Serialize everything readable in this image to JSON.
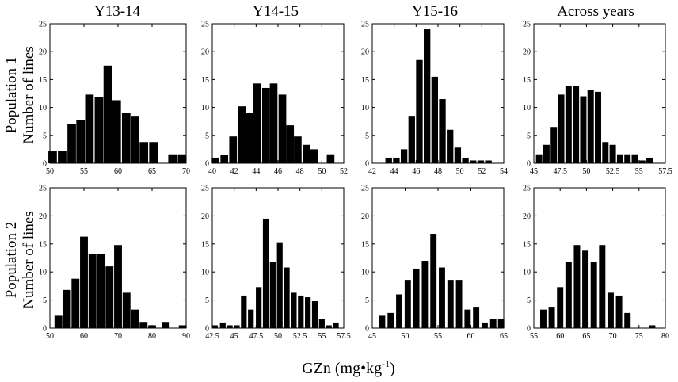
{
  "figure": {
    "x_axis_label": "GZn (mg•kg",
    "x_axis_label_sup": "-1",
    "x_axis_label_close": ")",
    "row_labels": [
      {
        "line1": "Population 1",
        "line2": "Number of lines"
      },
      {
        "line1": "Population 2",
        "line2": "Number of lines"
      }
    ],
    "column_titles": [
      "Y13-14",
      "Y14-15",
      "Y15-16",
      "Across years"
    ]
  },
  "chart_data": [
    {
      "type": "bar",
      "population": "Population 1",
      "title": "Y13-14",
      "xlabel": "GZn (mg•kg-1)",
      "ylabel": "Number of lines",
      "xlim": [
        50,
        70
      ],
      "ylim": [
        0,
        25
      ],
      "bar_width": 1.25,
      "xticks": [
        50,
        55,
        60,
        65,
        70
      ],
      "xtick_labels": [
        "50",
        "55",
        "60",
        "65",
        "70"
      ],
      "yticks": [
        0,
        5,
        10,
        15,
        20,
        25
      ],
      "ytick_labels": [
        "0",
        "5",
        "10",
        "15",
        "20",
        "25"
      ],
      "x": [
        50.4,
        51.8,
        53.2,
        54.5,
        55.8,
        57.2,
        58.5,
        59.8,
        61.2,
        62.5,
        63.8,
        65.2,
        68.0,
        69.4
      ],
      "values": [
        2.2,
        2.2,
        7.0,
        7.8,
        12.3,
        11.8,
        17.5,
        11.3,
        9.0,
        8.5,
        3.8,
        3.8,
        1.6,
        1.6
      ]
    },
    {
      "type": "bar",
      "population": "Population 1",
      "title": "Y14-15",
      "xlabel": "GZn (mg•kg-1)",
      "ylabel": "Number of lines",
      "xlim": [
        40,
        52
      ],
      "ylim": [
        0,
        25
      ],
      "bar_width": 0.7,
      "xticks": [
        40,
        42,
        44,
        46,
        48,
        50,
        52
      ],
      "xtick_labels": [
        "40",
        "42",
        "44",
        "46",
        "48",
        "50",
        "52"
      ],
      "yticks": [
        0,
        5,
        10,
        15,
        20,
        25
      ],
      "ytick_labels": [
        "0",
        "5",
        "10",
        "15",
        "20",
        "25"
      ],
      "x": [
        40.3,
        41.1,
        41.9,
        42.7,
        43.4,
        44.1,
        44.9,
        45.6,
        46.4,
        47.1,
        47.8,
        48.6,
        49.3,
        50.8
      ],
      "values": [
        1.0,
        1.5,
        4.8,
        10.2,
        9.0,
        14.3,
        13.5,
        14.3,
        12.3,
        6.8,
        4.8,
        3.3,
        2.5,
        1.6
      ]
    },
    {
      "type": "bar",
      "population": "Population 1",
      "title": "Y15-16",
      "xlabel": "GZn (mg•kg-1)",
      "ylabel": "Number of lines",
      "xlim": [
        42,
        54
      ],
      "ylim": [
        0,
        25
      ],
      "bar_width": 0.6,
      "xticks": [
        42,
        44,
        46,
        48,
        50,
        52,
        54
      ],
      "xtick_labels": [
        "42",
        "44",
        "46",
        "48",
        "50",
        "52",
        "54"
      ],
      "yticks": [
        0,
        5,
        10,
        15,
        20,
        25
      ],
      "ytick_labels": [
        "0",
        "5",
        "10",
        "15",
        "20",
        "25"
      ],
      "x": [
        43.5,
        44.2,
        44.9,
        45.6,
        46.3,
        47.0,
        47.7,
        48.4,
        49.1,
        49.8,
        50.5,
        51.2,
        51.9,
        52.6
      ],
      "values": [
        1.0,
        1.0,
        2.5,
        8.5,
        18.5,
        24.0,
        15.5,
        11.5,
        6.0,
        2.8,
        1.0,
        0.5,
        0.5,
        0.5
      ]
    },
    {
      "type": "bar",
      "population": "Population 1",
      "title": "Across years",
      "xlabel": "GZn (mg•kg-1)",
      "ylabel": "Number of lines",
      "xlim": [
        45,
        57.5
      ],
      "ylim": [
        0,
        25
      ],
      "bar_width": 0.6,
      "xticks": [
        45,
        47.5,
        50,
        52.5,
        55,
        57.5
      ],
      "xtick_labels": [
        "45",
        "47.5",
        "50",
        "52.5",
        "55",
        "57.5"
      ],
      "yticks": [
        0,
        5,
        10,
        15,
        20,
        25
      ],
      "ytick_labels": [
        "0",
        "5",
        "10",
        "15",
        "20",
        "25"
      ],
      "x": [
        45.5,
        46.2,
        46.9,
        47.6,
        48.3,
        49.0,
        49.7,
        50.4,
        51.1,
        51.8,
        52.5,
        53.2,
        53.9,
        54.6,
        55.3,
        56.0
      ],
      "values": [
        1.6,
        3.3,
        6.5,
        12.3,
        13.8,
        13.8,
        12.0,
        13.2,
        12.8,
        3.8,
        3.3,
        1.6,
        1.6,
        1.6,
        0.5,
        1.0
      ]
    },
    {
      "type": "bar",
      "population": "Population 2",
      "title": "Y13-14",
      "xlabel": "GZn (mg•kg-1)",
      "ylabel": "Number of lines",
      "xlim": [
        50,
        90
      ],
      "ylim": [
        0,
        25
      ],
      "bar_width": 2.3,
      "xticks": [
        50,
        60,
        70,
        80,
        90
      ],
      "xtick_labels": [
        "50",
        "60",
        "70",
        "80",
        "90"
      ],
      "yticks": [
        0,
        5,
        10,
        15,
        20,
        25
      ],
      "ytick_labels": [
        "0",
        "5",
        "10",
        "15",
        "20",
        "25"
      ],
      "x": [
        52.5,
        55.0,
        57.5,
        60.0,
        62.5,
        65.0,
        67.5,
        70.0,
        72.5,
        75.0,
        77.5,
        80.0,
        84.0,
        89.0
      ],
      "values": [
        2.2,
        6.8,
        8.8,
        16.3,
        13.2,
        13.2,
        11.0,
        14.8,
        6.3,
        3.3,
        1.1,
        0.5,
        1.1,
        0.5
      ]
    },
    {
      "type": "bar",
      "population": "Population 2",
      "title": "Y14-15",
      "xlabel": "GZn (mg•kg-1)",
      "ylabel": "Number of lines",
      "xlim": [
        42.5,
        57.5
      ],
      "ylim": [
        0,
        25
      ],
      "bar_width": 0.65,
      "xticks": [
        42.5,
        45,
        47.5,
        50,
        52.5,
        55,
        57.5
      ],
      "xtick_labels": [
        "42.5",
        "45",
        "47.5",
        "50",
        "52.5",
        "55",
        "57.5"
      ],
      "yticks": [
        0,
        5,
        10,
        15,
        20,
        25
      ],
      "ytick_labels": [
        "0",
        "5",
        "10",
        "15",
        "20",
        "25"
      ],
      "x": [
        42.8,
        43.7,
        44.5,
        45.3,
        46.1,
        46.9,
        47.8,
        48.6,
        49.4,
        50.2,
        51.0,
        51.8,
        52.6,
        53.4,
        54.2,
        55.0,
        55.8,
        56.6
      ],
      "values": [
        0.5,
        1.0,
        0.5,
        0.5,
        5.8,
        3.3,
        7.3,
        19.5,
        11.8,
        15.3,
        10.8,
        6.3,
        5.8,
        5.5,
        4.8,
        1.6,
        0.5,
        1.0
      ]
    },
    {
      "type": "bar",
      "population": "Population 2",
      "title": "Y15-16",
      "xlabel": "GZn (mg•kg-1)",
      "ylabel": "Number of lines",
      "xlim": [
        45,
        65
      ],
      "ylim": [
        0,
        25
      ],
      "bar_width": 0.95,
      "xticks": [
        45,
        50,
        55,
        60,
        65
      ],
      "xtick_labels": [
        "45",
        "50",
        "55",
        "60",
        "65"
      ],
      "yticks": [
        0,
        5,
        10,
        15,
        20,
        25
      ],
      "ytick_labels": [
        "0",
        "5",
        "10",
        "15",
        "20",
        "25"
      ],
      "x": [
        46.5,
        47.8,
        49.1,
        50.4,
        51.7,
        53.0,
        54.3,
        55.6,
        56.9,
        58.2,
        59.5,
        60.8,
        62.1,
        63.4,
        64.6
      ],
      "values": [
        2.2,
        2.7,
        6.0,
        8.6,
        10.6,
        12.0,
        16.8,
        10.8,
        8.6,
        8.6,
        3.3,
        3.8,
        1.0,
        1.6,
        1.6
      ]
    },
    {
      "type": "bar",
      "population": "Population 2",
      "title": "Across years",
      "xlabel": "GZn (mg•kg-1)",
      "ylabel": "Number of lines",
      "xlim": [
        55,
        80
      ],
      "ylim": [
        0,
        25
      ],
      "bar_width": 1.2,
      "xticks": [
        55,
        60,
        65,
        70,
        75,
        80
      ],
      "xtick_labels": [
        "55",
        "60",
        "65",
        "70",
        "75",
        "80"
      ],
      "yticks": [
        0,
        5,
        10,
        15,
        20,
        25
      ],
      "ytick_labels": [
        "0",
        "5",
        "10",
        "15",
        "20",
        "25"
      ],
      "x": [
        56.8,
        58.4,
        60.0,
        61.6,
        63.2,
        64.8,
        66.4,
        68.0,
        69.6,
        71.2,
        72.8,
        77.5
      ],
      "values": [
        3.3,
        3.8,
        7.3,
        11.8,
        14.8,
        13.8,
        11.8,
        14.8,
        6.3,
        5.8,
        2.7,
        0.5
      ]
    }
  ]
}
